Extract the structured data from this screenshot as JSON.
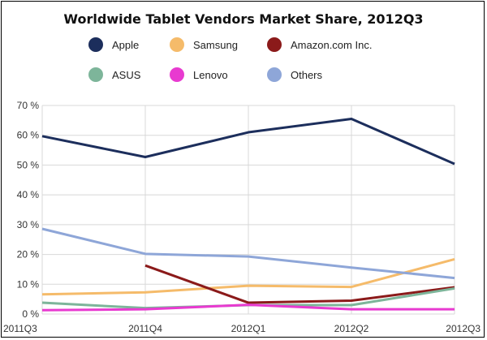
{
  "chart_data": {
    "type": "line",
    "title": "Worldwide Tablet Vendors Market Share, 2012Q3",
    "categories": [
      "2011Q3",
      "2011Q4",
      "2012Q1",
      "2012Q2",
      "2012Q3"
    ],
    "ylim": [
      0,
      70
    ],
    "yticks": [
      0,
      10,
      20,
      30,
      40,
      50,
      60,
      70
    ],
    "ytick_labels": [
      "0 %",
      "10 %",
      "20 %",
      "30 %",
      "40 %",
      "50 %",
      "60 %",
      "70 %"
    ],
    "grid": true,
    "legend_position": "top",
    "series": [
      {
        "name": "Apple",
        "color": "#1c2e5c",
        "values": [
          59.7,
          52.7,
          61.0,
          65.5,
          50.4
        ]
      },
      {
        "name": "Samsung",
        "color": "#f5bb6a",
        "values": [
          6.6,
          7.3,
          9.5,
          9.1,
          18.4
        ]
      },
      {
        "name": "Amazon.com Inc.",
        "color": "#8b1a1a",
        "values": [
          null,
          16.3,
          3.8,
          4.5,
          9.0
        ]
      },
      {
        "name": "ASUS",
        "color": "#7db59a",
        "values": [
          3.8,
          2.0,
          3.0,
          3.0,
          8.6
        ]
      },
      {
        "name": "Lenovo",
        "color": "#e83ad0",
        "values": [
          1.3,
          1.6,
          3.1,
          1.6,
          1.6
        ]
      },
      {
        "name": "Others",
        "color": "#8ea6d8",
        "values": [
          28.6,
          20.2,
          19.3,
          15.6,
          12.1
        ]
      }
    ]
  }
}
